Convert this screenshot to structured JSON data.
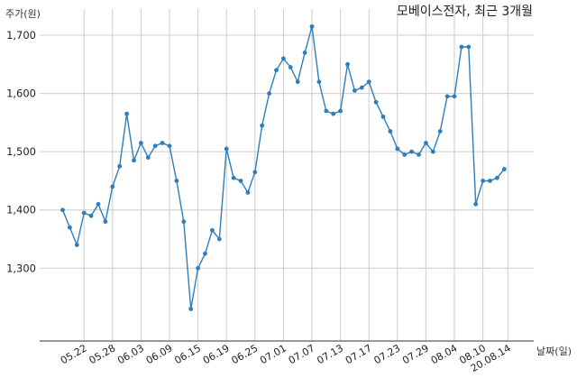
{
  "chart_data": {
    "type": "line",
    "title": "모베이스전자, 최근 3개월",
    "ylabel": "주가(원)",
    "xlabel": "날짜(일)",
    "ylim": [
      1175,
      1745
    ],
    "y_ticks": [
      1300,
      1400,
      1500,
      1600,
      1700
    ],
    "y_tick_labels": [
      "1,300",
      "1,400",
      "1,500",
      "1,600",
      "1,700"
    ],
    "x_tick_labels": [
      "05.22",
      "05.28",
      "06.03",
      "06.09",
      "06.15",
      "06.19",
      "06.25",
      "07.01",
      "07.07",
      "07.13",
      "07.17",
      "07.23",
      "07.29",
      "08.04",
      "08.10",
      "20.08.14"
    ],
    "x_tick_positions": [
      3,
      7,
      11,
      15,
      19,
      23,
      27,
      31,
      35,
      39,
      43,
      47,
      51,
      55,
      59,
      62.5
    ],
    "grid": true,
    "line_color": "#2f7ebc",
    "series": [
      {
        "values": [
          1400,
          1370,
          1340,
          1395,
          1390,
          1410,
          1380,
          1440,
          1475,
          1565,
          1485,
          1515,
          1490,
          1510,
          1515,
          1510,
          1450,
          1380,
          1230,
          1300,
          1325,
          1365,
          1350,
          1505,
          1455,
          1450,
          1430,
          1465,
          1545,
          1600,
          1640,
          1660,
          1645,
          1620,
          1670,
          1715,
          1620,
          1570,
          1565,
          1570,
          1650,
          1605,
          1610,
          1620,
          1585,
          1560,
          1535,
          1505,
          1495,
          1500,
          1495,
          1515,
          1500,
          1535,
          1595,
          1595,
          1680,
          1680,
          1410,
          1450,
          1450,
          1455,
          1470
        ]
      }
    ]
  }
}
